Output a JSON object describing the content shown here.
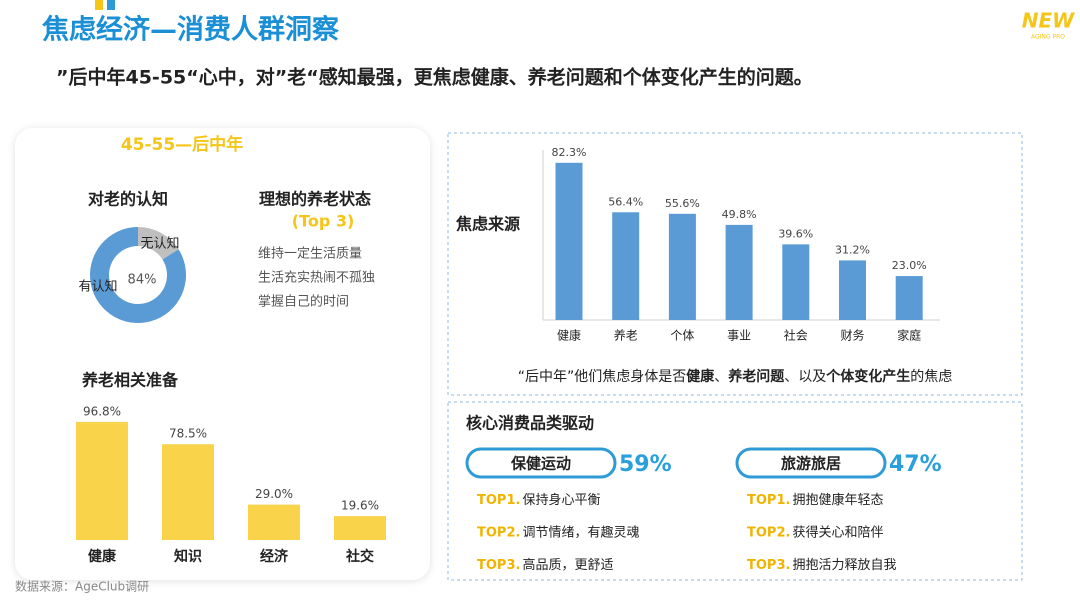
{
  "header": {
    "title": "焦虑经济—消费人群洞察",
    "subtitle": "”后中年45-55“心中，对”老“感知最强，更焦虑健康、养老问题和个体变化产生的问题。"
  },
  "logo": {
    "text": "NEW",
    "subtext": "AGING PRO"
  },
  "left_panel": {
    "heading": "45-55—后中年",
    "ideal": {
      "title": "理想的养老状态",
      "subtitle": "(Top 3)",
      "items": [
        "维持一定生活质量",
        "生活充实热闹不孤独",
        "掌握自己的时间"
      ]
    }
  },
  "chart_data": [
    {
      "type": "pie",
      "title": "对老的认知",
      "categories": [
        "有认知",
        "无认知"
      ],
      "values": [
        84,
        16
      ],
      "value_labels": [
        "84%",
        null
      ],
      "colors": [
        "#5b9bd5",
        "#bfbfbf"
      ]
    },
    {
      "type": "bar",
      "title": "养老相关准备",
      "categories": [
        "健康",
        "知识",
        "经济",
        "社交"
      ],
      "values": [
        96.8,
        78.5,
        29.0,
        19.6
      ],
      "value_labels": [
        "96.8%",
        "78.5%",
        "29.0%",
        "19.6%"
      ],
      "color": "#f9d34a"
    },
    {
      "type": "bar",
      "title": "焦虑来源",
      "categories": [
        "健康",
        "养老",
        "个体",
        "事业",
        "社会",
        "财务",
        "家庭"
      ],
      "values": [
        82.3,
        56.4,
        55.6,
        49.8,
        39.6,
        31.2,
        23.0
      ],
      "value_labels": [
        "82.3%",
        "56.4%",
        "55.6%",
        "49.8%",
        "39.6%",
        "31.2%",
        "23.0%"
      ],
      "color": "#5b9bd5",
      "caption": [
        "“后中年”他们焦虑身体是否",
        "健康",
        "、",
        "养老问题",
        "、以及",
        "个体变化产生",
        "的焦虑"
      ]
    }
  ],
  "drivers": {
    "title": "核心消费品类驱动",
    "groups": [
      {
        "name": "保健运动",
        "share": "59%",
        "items": [
          {
            "rank": "TOP1.",
            "text": "保持身心平衡"
          },
          {
            "rank": "TOP2.",
            "text": "调节情绪，有趣灵魂"
          },
          {
            "rank": "TOP3.",
            "text": "高品质，更舒适"
          }
        ]
      },
      {
        "name": "旅游旅居",
        "share": "47%",
        "items": [
          {
            "rank": "TOP1.",
            "text": "拥抱健康年轻态"
          },
          {
            "rank": "TOP2.",
            "text": "获得关心和陪伴"
          },
          {
            "rank": "TOP3.",
            "text": "拥抱活力释放自我"
          }
        ]
      }
    ]
  },
  "source": "数据来源：AgeClub调研"
}
